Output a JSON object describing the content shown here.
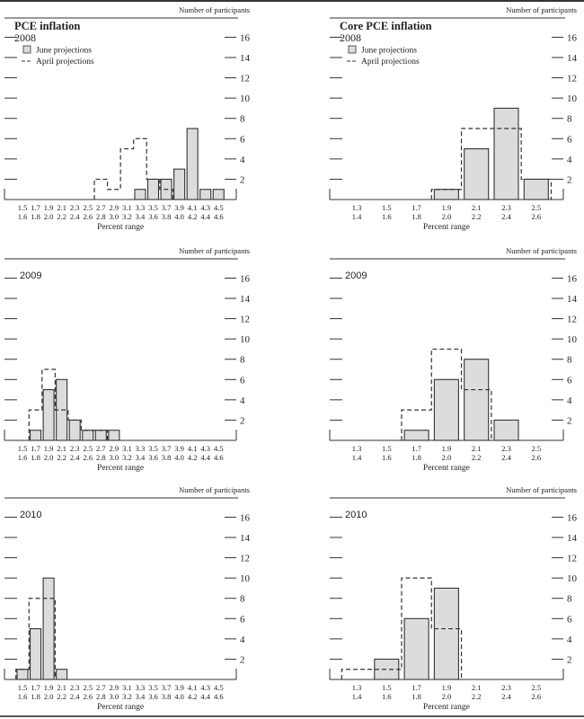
{
  "y_axis_label": "Number of participants",
  "x_axis_label": "Percent range",
  "legend": {
    "june_label": "June projections",
    "april_label": "April projections"
  },
  "colors": {
    "bar_fill": "#dcdcdc",
    "bar_stroke": "#333333",
    "dash": "#333333"
  },
  "chart_data": [
    {
      "type": "bar",
      "title": "PCE inflation",
      "year": "2008",
      "show_legend": true,
      "xlabel": "Percent range",
      "ylabel": "Number of participants",
      "ylim": [
        0,
        16
      ],
      "yticks": [
        2,
        4,
        6,
        8,
        10,
        12,
        14,
        16
      ],
      "categories": [
        [
          "1.5",
          "1.6"
        ],
        [
          "1.7",
          "1.8"
        ],
        [
          "1.9",
          "2.0"
        ],
        [
          "2.1",
          "2.2"
        ],
        [
          "2.3",
          "2.4"
        ],
        [
          "2.5",
          "2.6"
        ],
        [
          "2.7",
          "2.8"
        ],
        [
          "2.9",
          "3.0"
        ],
        [
          "3.1",
          "3.2"
        ],
        [
          "3.3",
          "3.4"
        ],
        [
          "3.5",
          "3.6"
        ],
        [
          "3.7",
          "3.8"
        ],
        [
          "3.9",
          "4.0"
        ],
        [
          "4.1",
          "4.2"
        ],
        [
          "4.3",
          "4.4"
        ],
        [
          "4.5",
          "4.6"
        ]
      ],
      "series": [
        {
          "name": "June projections",
          "values": [
            0,
            0,
            0,
            0,
            0,
            0,
            0,
            0,
            0,
            1,
            2,
            2,
            3,
            7,
            1,
            1
          ]
        },
        {
          "name": "April projections",
          "values": [
            0,
            0,
            0,
            0,
            0,
            0,
            2,
            1,
            5,
            6,
            2,
            1,
            0,
            0,
            0,
            0
          ]
        }
      ]
    },
    {
      "type": "bar",
      "title": "Core PCE inflation",
      "year": "2008",
      "show_legend": true,
      "xlabel": "Percent range",
      "ylabel": "Number of participants",
      "ylim": [
        0,
        16
      ],
      "yticks": [
        2,
        4,
        6,
        8,
        10,
        12,
        14,
        16
      ],
      "categories": [
        [
          "1.3",
          "1.4"
        ],
        [
          "1.5",
          "1.6"
        ],
        [
          "1.7",
          "1.8"
        ],
        [
          "1.9",
          "2.0"
        ],
        [
          "2.1",
          "2.2"
        ],
        [
          "2.3",
          "2.4"
        ],
        [
          "2.5",
          "2.6"
        ]
      ],
      "series": [
        {
          "name": "June projections",
          "values": [
            0,
            0,
            0,
            1,
            5,
            9,
            2
          ]
        },
        {
          "name": "April projections",
          "values": [
            0,
            0,
            0,
            1,
            7,
            7,
            2
          ]
        }
      ]
    },
    {
      "type": "bar",
      "title": "",
      "year": "2009",
      "show_legend": false,
      "xlabel": "Percent range",
      "ylabel": "Number of participants",
      "ylim": [
        0,
        16
      ],
      "yticks": [
        2,
        4,
        6,
        8,
        10,
        12,
        14,
        16
      ],
      "categories": [
        [
          "1.5",
          "1.6"
        ],
        [
          "1.7",
          "1.8"
        ],
        [
          "1.9",
          "2.0"
        ],
        [
          "2.1",
          "2.2"
        ],
        [
          "2.3",
          "2.4"
        ],
        [
          "2.5",
          "2.6"
        ],
        [
          "2.7",
          "2.8"
        ],
        [
          "2.9",
          "3.0"
        ],
        [
          "3.1",
          "3.2"
        ],
        [
          "3.3",
          "3.4"
        ],
        [
          "3.5",
          "3.6"
        ],
        [
          "3.7",
          "3.8"
        ],
        [
          "3.9",
          "4.0"
        ],
        [
          "4.1",
          "4.2"
        ],
        [
          "4.3",
          "4.4"
        ],
        [
          "4.5",
          "4.6"
        ]
      ],
      "series": [
        {
          "name": "June projections",
          "values": [
            0,
            1,
            5,
            6,
            2,
            1,
            1,
            1,
            0,
            0,
            0,
            0,
            0,
            0,
            0,
            0
          ]
        },
        {
          "name": "April projections",
          "values": [
            0,
            3,
            7,
            3,
            2,
            1,
            1,
            0,
            0,
            0,
            0,
            0,
            0,
            0,
            0,
            0
          ]
        }
      ]
    },
    {
      "type": "bar",
      "title": "",
      "year": "2009",
      "show_legend": false,
      "xlabel": "Percent range",
      "ylabel": "Number of participants",
      "ylim": [
        0,
        16
      ],
      "yticks": [
        2,
        4,
        6,
        8,
        10,
        12,
        14,
        16
      ],
      "categories": [
        [
          "1.3",
          "1.4"
        ],
        [
          "1.5",
          "1.6"
        ],
        [
          "1.7",
          "1.8"
        ],
        [
          "1.9",
          "2.0"
        ],
        [
          "2.1",
          "2.2"
        ],
        [
          "2.3",
          "2.4"
        ],
        [
          "2.5",
          "2.6"
        ]
      ],
      "series": [
        {
          "name": "June projections",
          "values": [
            0,
            0,
            1,
            6,
            8,
            2,
            0
          ]
        },
        {
          "name": "April projections",
          "values": [
            0,
            0,
            3,
            9,
            5,
            0,
            0
          ]
        }
      ]
    },
    {
      "type": "bar",
      "title": "",
      "year": "2010",
      "show_legend": false,
      "xlabel": "Percent range",
      "ylabel": "Number of participants",
      "ylim": [
        0,
        16
      ],
      "yticks": [
        2,
        4,
        6,
        8,
        10,
        12,
        14,
        16
      ],
      "categories": [
        [
          "1.5",
          "1.6"
        ],
        [
          "1.7",
          "1.8"
        ],
        [
          "1.9",
          "2.0"
        ],
        [
          "2.1",
          "2.2"
        ],
        [
          "2.3",
          "2.4"
        ],
        [
          "2.5",
          "2.6"
        ],
        [
          "2.7",
          "2.8"
        ],
        [
          "2.9",
          "3.0"
        ],
        [
          "3.1",
          "3.2"
        ],
        [
          "3.3",
          "3.4"
        ],
        [
          "3.5",
          "3.6"
        ],
        [
          "3.7",
          "3.8"
        ],
        [
          "3.9",
          "4.0"
        ],
        [
          "4.1",
          "4.2"
        ],
        [
          "4.3",
          "4.4"
        ],
        [
          "4.5",
          "4.6"
        ]
      ],
      "series": [
        {
          "name": "June projections",
          "values": [
            1,
            5,
            10,
            1,
            0,
            0,
            0,
            0,
            0,
            0,
            0,
            0,
            0,
            0,
            0,
            0
          ]
        },
        {
          "name": "April projections",
          "values": [
            1,
            8,
            8,
            0,
            0,
            0,
            0,
            0,
            0,
            0,
            0,
            0,
            0,
            0,
            0,
            0
          ]
        }
      ]
    },
    {
      "type": "bar",
      "title": "",
      "year": "2010",
      "show_legend": false,
      "xlabel": "Percent range",
      "ylabel": "Number of participants",
      "ylim": [
        0,
        16
      ],
      "yticks": [
        2,
        4,
        6,
        8,
        10,
        12,
        14,
        16
      ],
      "categories": [
        [
          "1.3",
          "1.4"
        ],
        [
          "1.5",
          "1.6"
        ],
        [
          "1.7",
          "1.8"
        ],
        [
          "1.9",
          "2.0"
        ],
        [
          "2.1",
          "2.2"
        ],
        [
          "2.3",
          "2.4"
        ],
        [
          "2.5",
          "2.6"
        ]
      ],
      "series": [
        {
          "name": "June projections",
          "values": [
            0,
            2,
            6,
            9,
            0,
            0,
            0
          ]
        },
        {
          "name": "April projections",
          "values": [
            1,
            1,
            10,
            5,
            0,
            0,
            0
          ]
        }
      ]
    }
  ]
}
